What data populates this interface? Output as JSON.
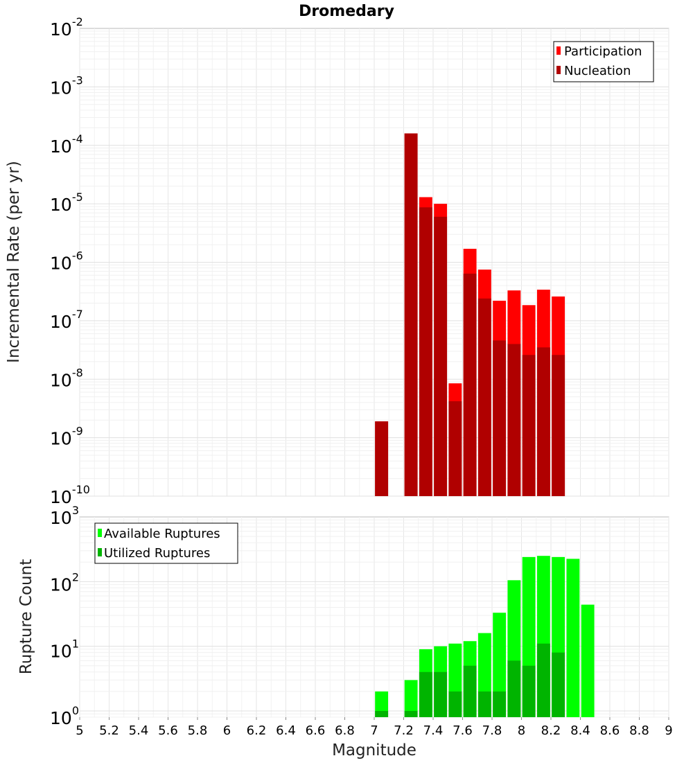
{
  "chart_data": [
    {
      "type": "bar",
      "title": "Dromedary",
      "xlabel": "",
      "ylabel": "Incremental Rate (per yr)",
      "y_scale": "log",
      "xlim": [
        5,
        9
      ],
      "ylim": [
        1e-10,
        0.01
      ],
      "y_ticks": [
        {
          "base": "10",
          "exp": "-10"
        },
        {
          "base": "10",
          "exp": "-9"
        },
        {
          "base": "10",
          "exp": "-8"
        },
        {
          "base": "10",
          "exp": "-7"
        },
        {
          "base": "10",
          "exp": "-6"
        },
        {
          "base": "10",
          "exp": "-5"
        },
        {
          "base": "10",
          "exp": "-4"
        },
        {
          "base": "10",
          "exp": "-3"
        },
        {
          "base": "10",
          "exp": "-2"
        }
      ],
      "grid": true,
      "legend_position": "top-right",
      "bar_width": 0.1,
      "series": [
        {
          "name": "Participation",
          "color": "#ff0000",
          "x": [
            7.05,
            7.25,
            7.35,
            7.45,
            7.55,
            7.65,
            7.75,
            7.85,
            7.95,
            8.05,
            8.15,
            8.25
          ],
          "values": [
            1.9e-09,
            0.00016,
            1.3e-05,
            1e-05,
            8.5e-09,
            1.7e-06,
            7.5e-07,
            2.2e-07,
            3.3e-07,
            1.85e-07,
            3.4e-07,
            2.6e-07
          ]
        },
        {
          "name": "Nucleation",
          "color": "#b00000",
          "x": [
            7.05,
            7.25,
            7.35,
            7.45,
            7.55,
            7.65,
            7.75,
            7.85,
            7.95,
            8.05,
            8.15,
            8.25
          ],
          "values": [
            1.9e-09,
            0.00016,
            8.7e-06,
            6e-06,
            4.2e-09,
            6.4e-07,
            2.4e-07,
            4.6e-08,
            4e-08,
            2.6e-08,
            3.5e-08,
            2.6e-08
          ]
        }
      ]
    },
    {
      "type": "bar",
      "title": "",
      "xlabel": "Magnitude",
      "ylabel": "Rupture Count",
      "y_scale": "log",
      "xlim": [
        5,
        9
      ],
      "ylim": [
        0.8,
        1000
      ],
      "x_ticks": [
        "5",
        "5.2",
        "5.4",
        "5.6",
        "5.8",
        "6",
        "6.2",
        "6.4",
        "6.6",
        "6.8",
        "7",
        "7.2",
        "7.4",
        "7.6",
        "7.8",
        "8",
        "8.2",
        "8.4",
        "8.6",
        "8.8",
        "9"
      ],
      "y_ticks": [
        {
          "base": "10",
          "exp": "0"
        },
        {
          "base": "10",
          "exp": "1"
        },
        {
          "base": "10",
          "exp": "2"
        },
        {
          "base": "10",
          "exp": "3"
        }
      ],
      "grid": true,
      "legend_position": "top-left",
      "bar_width": 0.1,
      "series": [
        {
          "name": "Available Ruptures",
          "color": "#00ff00",
          "x": [
            7.05,
            7.25,
            7.35,
            7.45,
            7.55,
            7.65,
            7.75,
            7.85,
            7.95,
            8.05,
            8.15,
            8.25,
            8.35,
            8.45
          ],
          "values": [
            2,
            3,
            9,
            10,
            11,
            12,
            16,
            33,
            105,
            240,
            250,
            240,
            225,
            44
          ]
        },
        {
          "name": "Utilized Ruptures",
          "color": "#00b400",
          "x": [
            7.05,
            7.25,
            7.35,
            7.45,
            7.55,
            7.65,
            7.75,
            7.85,
            7.95,
            8.05,
            8.15,
            8.25
          ],
          "values": [
            1,
            1,
            4,
            4,
            2,
            5,
            2,
            2,
            6,
            5,
            11,
            8
          ]
        }
      ]
    }
  ]
}
